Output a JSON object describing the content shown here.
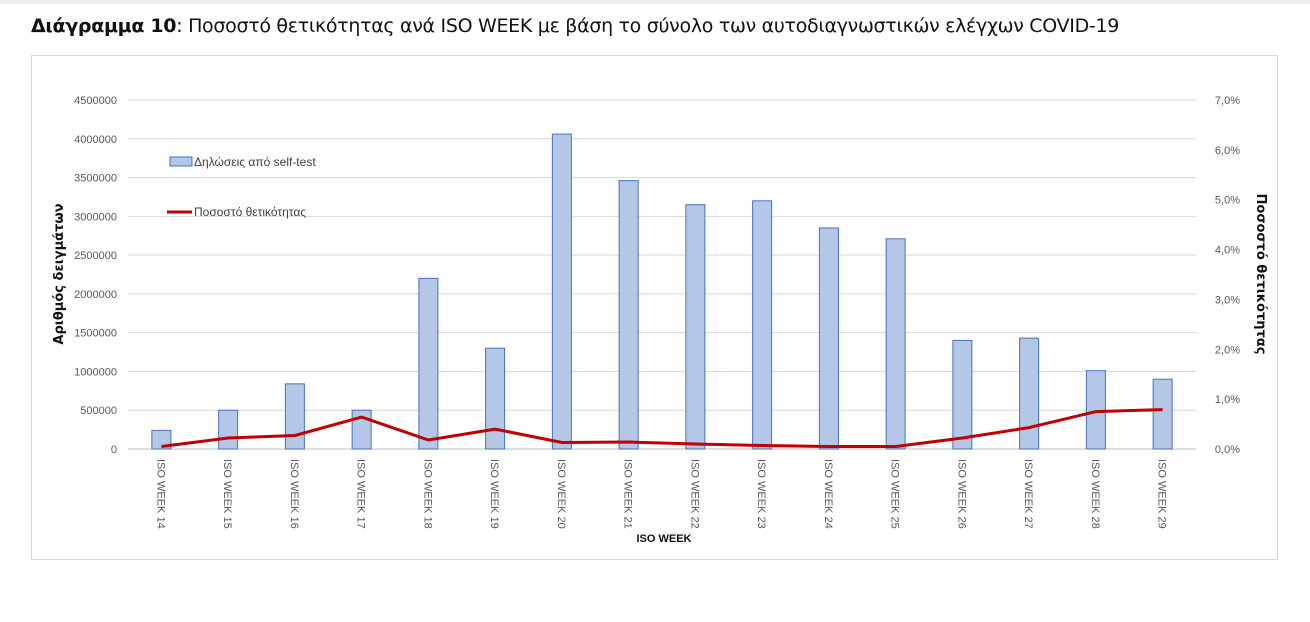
{
  "heading": {
    "label": "Διάγραμμα 10",
    "text": ": Ποσοστό θετικότητας ανά ISO WEEK με βάση το σύνολο των αυτοδιαγνωστικών ελέγχων COVID-19"
  },
  "chart_data": {
    "type": "bar",
    "categories": [
      "ISO WEEK 14",
      "ISO WEEK 15",
      "ISO WEEK 16",
      "ISO WEEK 17",
      "ISO WEEK 18",
      "ISO WEEK 19",
      "ISO WEEK 20",
      "ISO WEEK 21",
      "ISO WEEK 22",
      "ISO WEEK 23",
      "ISO WEEK 24",
      "ISO WEEK 25",
      "ISO WEEK 26",
      "ISO WEEK 27",
      "ISO WEEK 28",
      "ISO WEEK 29"
    ],
    "series": [
      {
        "name": "Δηλώσεις από self-test",
        "type": "bar",
        "axis": "left",
        "color": "#b4c7e7",
        "values": [
          240000,
          500000,
          840000,
          500000,
          2200000,
          1300000,
          4060000,
          3460000,
          3150000,
          3200000,
          2850000,
          2710000,
          1400000,
          1430000,
          1010000,
          900000
        ]
      },
      {
        "name": "Ποσοστό θετικότητας",
        "type": "line",
        "axis": "right",
        "color": "#c00000",
        "values": [
          0.05,
          0.22,
          0.27,
          0.64,
          0.18,
          0.4,
          0.13,
          0.14,
          0.1,
          0.07,
          0.05,
          0.05,
          0.22,
          0.43,
          0.75,
          0.79
        ]
      }
    ],
    "xlabel": "ISO WEEK",
    "ylabel": "Αριθμός δειγμάτων",
    "y2label": "Ποσοστό θετικότητας",
    "ylim": [
      0,
      4500000
    ],
    "yticks": [
      "0",
      "500000",
      "1000000",
      "1500000",
      "2000000",
      "2500000",
      "3000000",
      "3500000",
      "4000000",
      "4500000"
    ],
    "y2lim": [
      0,
      7.0
    ],
    "y2ticks": [
      "0,0%",
      "1,0%",
      "2,0%",
      "3,0%",
      "4,0%",
      "5,0%",
      "6,0%",
      "7,0%"
    ],
    "grid": true,
    "legend_position": "top-left"
  }
}
